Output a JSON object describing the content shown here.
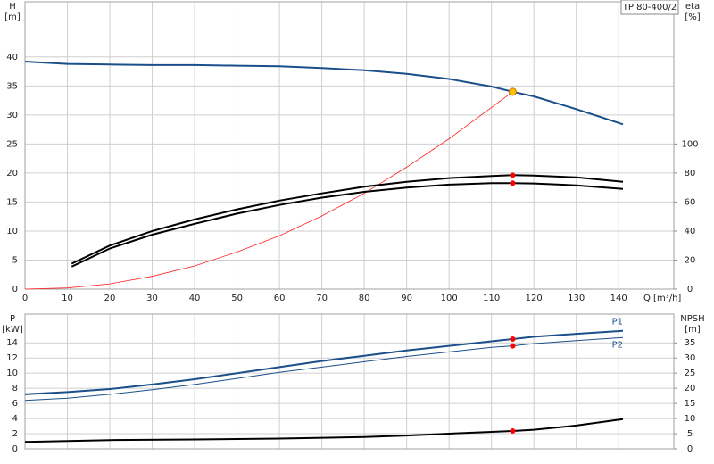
{
  "chart_data": [
    {
      "type": "line",
      "title": "TP 80-400/2",
      "ylabel": [
        "H",
        "[m]"
      ],
      "y2label": [
        "eta",
        "[%]"
      ],
      "xlabel": "Q [m³/h]",
      "xlim": [
        0,
        153
      ],
      "xticks": [
        0,
        10,
        20,
        30,
        40,
        50,
        60,
        70,
        80,
        90,
        100,
        110,
        120,
        130,
        140
      ],
      "ylim": [
        0,
        49.5
      ],
      "yticks": [
        0,
        5,
        10,
        15,
        20,
        25,
        30,
        35,
        40
      ],
      "y2lim": [
        0,
        198
      ],
      "y2ticks": [
        0,
        20,
        40,
        60,
        80,
        100
      ],
      "grid": true,
      "series": [
        {
          "color": "#1a4f8a",
          "width": 2,
          "x": [
            0,
            10,
            20,
            30,
            40,
            50,
            60,
            70,
            80,
            90,
            100,
            110,
            115,
            120,
            130,
            141
          ],
          "values": [
            39.2,
            38.8,
            38.7,
            38.6,
            38.6,
            38.5,
            38.4,
            38.1,
            37.7,
            37.1,
            36.2,
            34.9,
            34.0,
            33.2,
            31.0,
            28.4
          ]
        },
        {
          "color": "#ff2020",
          "width": 0.8,
          "x": [
            0,
            10,
            20,
            30,
            40,
            50,
            60,
            70,
            80,
            90,
            100,
            110,
            115
          ],
          "values": [
            0,
            0.2,
            0.9,
            2.2,
            4.0,
            6.4,
            9.2,
            12.6,
            16.5,
            21,
            25.9,
            31.3,
            34.0
          ]
        },
        {
          "color": "#000000",
          "width": 2,
          "axis": "y2",
          "x": [
            11,
            20,
            30,
            40,
            50,
            60,
            70,
            80,
            90,
            100,
            110,
            115,
            120,
            130,
            141
          ],
          "values": [
            17.5,
            30,
            40,
            48,
            55,
            61,
            66,
            70.5,
            74,
            76.5,
            78,
            78.5,
            78.3,
            77,
            74
          ]
        },
        {
          "color": "#000000",
          "width": 2,
          "axis": "y2",
          "x": [
            11,
            20,
            30,
            40,
            50,
            60,
            70,
            80,
            90,
            100,
            110,
            115,
            120,
            130,
            141
          ],
          "values": [
            15.5,
            28,
            37.5,
            45,
            52,
            58,
            63,
            67,
            70,
            72,
            73,
            73,
            72.8,
            71.5,
            69
          ]
        }
      ],
      "markers": [
        {
          "x": 115,
          "y": 34.0,
          "color": "#ffc000"
        },
        {
          "x": 115,
          "y": 78.5,
          "color": "#ff0000",
          "axis": "y2"
        },
        {
          "x": 115,
          "y": 73,
          "color": "#ff0000",
          "axis": "y2"
        }
      ]
    },
    {
      "type": "line",
      "ylabel": [
        "P",
        "[kW]"
      ],
      "y2label": [
        "NPSH",
        "[m]"
      ],
      "xlim": [
        0,
        153
      ],
      "ylim": [
        0,
        17.8
      ],
      "yticks": [
        0,
        2,
        4,
        6,
        8,
        10,
        12,
        14
      ],
      "y2lim": [
        0,
        44.5
      ],
      "y2ticks": [
        0,
        5,
        10,
        15,
        20,
        25,
        30,
        35
      ],
      "grid": true,
      "series": [
        {
          "name": "P1",
          "color": "#1a4f8a",
          "width": 2,
          "x": [
            0,
            10,
            20,
            30,
            40,
            50,
            60,
            70,
            80,
            90,
            100,
            110,
            115,
            120,
            130,
            141
          ],
          "values": [
            7.2,
            7.5,
            7.9,
            8.5,
            9.2,
            10.0,
            10.8,
            11.6,
            12.3,
            13.0,
            13.6,
            14.2,
            14.5,
            14.8,
            15.2,
            15.6
          ]
        },
        {
          "name": "P2",
          "color": "#1a4f8a",
          "width": 1,
          "x": [
            0,
            10,
            20,
            30,
            40,
            50,
            60,
            70,
            80,
            90,
            100,
            110,
            115,
            120,
            130,
            141
          ],
          "values": [
            6.4,
            6.7,
            7.2,
            7.8,
            8.5,
            9.3,
            10.1,
            10.8,
            11.5,
            12.2,
            12.8,
            13.4,
            13.6,
            13.9,
            14.3,
            14.7
          ]
        },
        {
          "color": "#000000",
          "width": 2,
          "axis": "y2",
          "x": [
            0,
            10,
            20,
            40,
            60,
            80,
            90,
            100,
            110,
            115,
            120,
            130,
            141
          ],
          "values": [
            2.3,
            2.6,
            2.9,
            3.1,
            3.4,
            3.9,
            4.4,
            5.0,
            5.6,
            5.9,
            6.3,
            7.7,
            9.8
          ]
        }
      ],
      "markers": [
        {
          "x": 115,
          "y": 14.5,
          "color": "#ff0000"
        },
        {
          "x": 115,
          "y": 13.6,
          "color": "#ff0000"
        },
        {
          "x": 115,
          "y": 5.9,
          "color": "#ff0000",
          "axis": "y2"
        }
      ]
    }
  ]
}
